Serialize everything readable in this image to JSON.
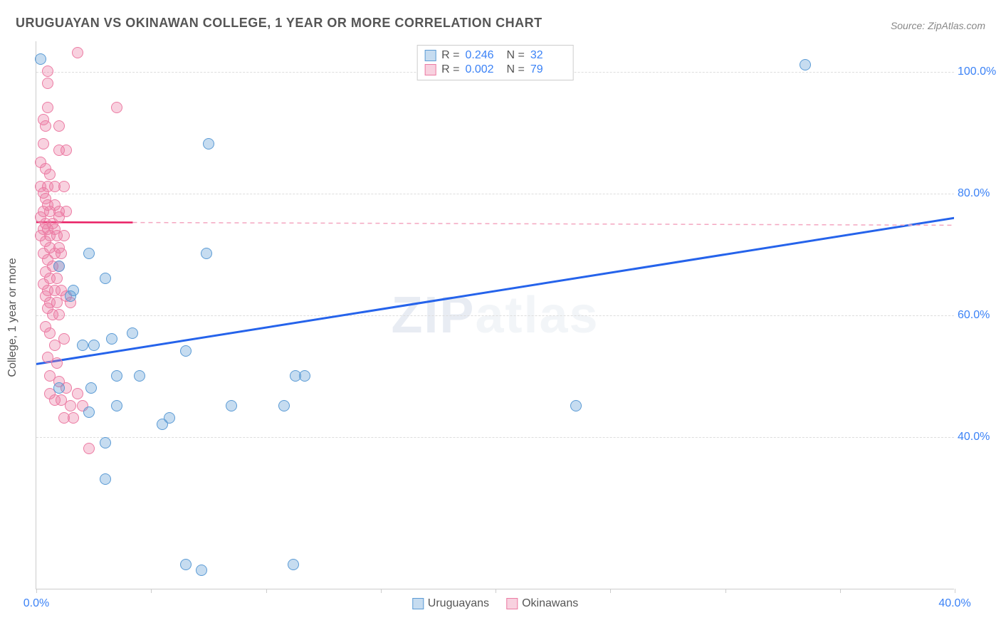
{
  "title": "URUGUAYAN VS OKINAWAN COLLEGE, 1 YEAR OR MORE CORRELATION CHART",
  "source": "Source: ZipAtlas.com",
  "watermark": "ZIPatlas",
  "y_axis_title": "College, 1 year or more",
  "chart": {
    "type": "scatter",
    "background_color": "#ffffff",
    "grid_color": "#dddddd",
    "axis_color": "#cccccc",
    "xlim": [
      0,
      40
    ],
    "ylim": [
      15,
      105
    ],
    "x_ticks": [
      0,
      5,
      10,
      15,
      20,
      25,
      30,
      35,
      40
    ],
    "x_tick_labels": {
      "0": "0.0%",
      "40": "40.0%"
    },
    "y_gridlines": [
      40,
      60,
      80,
      100
    ],
    "y_tick_labels": {
      "40": "40.0%",
      "60": "60.0%",
      "80": "80.0%",
      "100": "100.0%"
    },
    "tick_label_color": "#3b82f6",
    "tick_label_fontsize": 16,
    "axis_title_fontsize": 16,
    "axis_title_color": "#555555",
    "marker_radius": 8,
    "marker_stroke_width": 1.5,
    "marker_fill_opacity": 0.35
  },
  "series": {
    "uruguayans": {
      "label": "Uruguayans",
      "color_stroke": "#5b9bd5",
      "color_fill": "rgba(91,155,213,0.35)",
      "R": "0.246",
      "N": "32",
      "trend": {
        "x1": 0,
        "y1": 52,
        "x2": 40,
        "y2": 76,
        "stroke": "#2563eb",
        "width": 3,
        "dash": "none"
      },
      "points": [
        [
          0.2,
          102
        ],
        [
          33.5,
          101
        ],
        [
          1.0,
          68
        ],
        [
          2.3,
          70
        ],
        [
          3.0,
          66
        ],
        [
          7.5,
          88
        ],
        [
          7.4,
          70
        ],
        [
          1.5,
          63
        ],
        [
          1.6,
          64
        ],
        [
          2.0,
          55
        ],
        [
          2.5,
          55
        ],
        [
          3.3,
          56
        ],
        [
          4.2,
          57
        ],
        [
          6.5,
          54
        ],
        [
          2.4,
          48
        ],
        [
          3.5,
          50
        ],
        [
          4.5,
          50
        ],
        [
          11.3,
          50
        ],
        [
          11.7,
          50
        ],
        [
          1.0,
          48
        ],
        [
          2.3,
          44
        ],
        [
          3.5,
          45
        ],
        [
          8.5,
          45
        ],
        [
          10.8,
          45
        ],
        [
          23.5,
          45
        ],
        [
          5.5,
          42
        ],
        [
          5.8,
          43
        ],
        [
          3.0,
          39
        ],
        [
          3.0,
          33
        ],
        [
          6.5,
          19
        ],
        [
          7.2,
          18
        ],
        [
          11.2,
          19
        ]
      ]
    },
    "okinawans": {
      "label": "Okinawans",
      "color_stroke": "#ec7ba3",
      "color_fill": "rgba(236,123,163,0.35)",
      "R": "0.002",
      "N": "79",
      "trend_solid": {
        "x1": 0,
        "y1": 75.3,
        "x2": 4.2,
        "y2": 75.25,
        "stroke": "#e91e63",
        "width": 2.5
      },
      "trend_dash": {
        "x1": 4.2,
        "y1": 75.25,
        "x2": 40,
        "y2": 74.8,
        "stroke": "#f4a6c0",
        "width": 1.5,
        "dash": "6,5"
      },
      "points": [
        [
          1.8,
          103
        ],
        [
          0.5,
          100
        ],
        [
          0.5,
          98
        ],
        [
          0.5,
          94
        ],
        [
          3.5,
          94
        ],
        [
          0.3,
          92
        ],
        [
          0.4,
          91
        ],
        [
          1.0,
          91
        ],
        [
          0.3,
          88
        ],
        [
          1.0,
          87
        ],
        [
          1.3,
          87
        ],
        [
          0.2,
          85
        ],
        [
          0.4,
          84
        ],
        [
          0.6,
          83
        ],
        [
          0.2,
          81
        ],
        [
          0.5,
          81
        ],
        [
          0.8,
          81
        ],
        [
          1.2,
          81
        ],
        [
          0.3,
          80
        ],
        [
          0.4,
          79
        ],
        [
          0.5,
          78
        ],
        [
          0.8,
          78
        ],
        [
          0.3,
          77
        ],
        [
          0.6,
          77
        ],
        [
          1.0,
          77
        ],
        [
          1.3,
          77
        ],
        [
          0.2,
          76
        ],
        [
          0.4,
          75
        ],
        [
          0.7,
          75
        ],
        [
          1.0,
          76
        ],
        [
          0.3,
          74
        ],
        [
          0.5,
          74
        ],
        [
          0.8,
          74
        ],
        [
          0.2,
          73
        ],
        [
          0.6,
          73
        ],
        [
          0.9,
          73
        ],
        [
          1.2,
          73
        ],
        [
          0.4,
          72
        ],
        [
          0.6,
          71
        ],
        [
          1.0,
          71
        ],
        [
          0.3,
          70
        ],
        [
          0.8,
          70
        ],
        [
          1.1,
          70
        ],
        [
          0.5,
          69
        ],
        [
          0.7,
          68
        ],
        [
          1.0,
          68
        ],
        [
          0.4,
          67
        ],
        [
          0.6,
          66
        ],
        [
          0.9,
          66
        ],
        [
          0.3,
          65
        ],
        [
          0.5,
          64
        ],
        [
          0.8,
          64
        ],
        [
          1.1,
          64
        ],
        [
          0.4,
          63
        ],
        [
          0.6,
          62
        ],
        [
          0.9,
          62
        ],
        [
          0.5,
          61
        ],
        [
          0.7,
          60
        ],
        [
          1.0,
          60
        ],
        [
          1.3,
          63
        ],
        [
          1.5,
          62
        ],
        [
          0.4,
          58
        ],
        [
          0.6,
          57
        ],
        [
          0.8,
          55
        ],
        [
          1.2,
          56
        ],
        [
          0.5,
          53
        ],
        [
          0.9,
          52
        ],
        [
          0.6,
          50
        ],
        [
          1.0,
          49
        ],
        [
          1.3,
          48
        ],
        [
          1.8,
          47
        ],
        [
          0.8,
          46
        ],
        [
          1.1,
          46
        ],
        [
          1.5,
          45
        ],
        [
          2.0,
          45
        ],
        [
          1.6,
          43
        ],
        [
          1.2,
          43
        ],
        [
          2.3,
          38
        ],
        [
          0.6,
          47
        ]
      ]
    }
  },
  "legend": {
    "stats_labels": {
      "R": "R =",
      "N": "N ="
    }
  }
}
